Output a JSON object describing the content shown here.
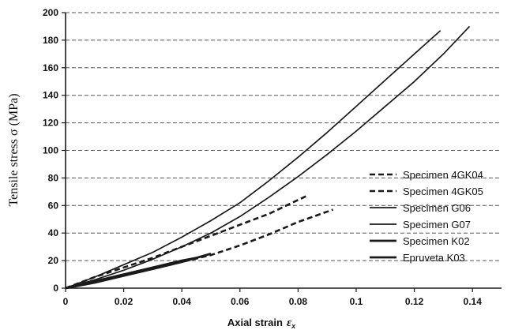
{
  "chart_data": {
    "type": "line",
    "xlabel": "Axial strain",
    "xlabel_symbol": "ε",
    "xlabel_subscript": "x",
    "ylabel": "Tensile  stress σ (MPa)",
    "xlim": [
      0,
      0.15
    ],
    "ylim": [
      0,
      200
    ],
    "xticks": [
      0,
      0.02,
      0.04,
      0.06,
      0.08,
      0.1,
      0.12,
      0.14
    ],
    "xtick_labels": [
      "0",
      "0.02",
      "0.04",
      "0.06",
      "0.08",
      "0.1",
      "0.12",
      "0.14"
    ],
    "yticks": [
      0,
      20,
      40,
      60,
      80,
      100,
      120,
      140,
      160,
      180,
      200
    ],
    "ytick_labels": [
      "0",
      "20",
      "40",
      "60",
      "80",
      "100",
      "120",
      "140",
      "160",
      "180",
      "200"
    ],
    "grid": "horizontal dashed",
    "legend_position": "bottom-right",
    "color": "#1a1a1a",
    "series": [
      {
        "name": "Specimen 4GK04",
        "style": "dashed",
        "x": [
          0,
          0.01,
          0.02,
          0.03,
          0.04,
          0.05,
          0.06,
          0.07,
          0.08,
          0.092
        ],
        "y": [
          0,
          5,
          10,
          14,
          19,
          24,
          31,
          39,
          48,
          57
        ]
      },
      {
        "name": "Specimen 4GK05",
        "style": "dashed",
        "x": [
          0,
          0.01,
          0.02,
          0.03,
          0.04,
          0.05,
          0.06,
          0.07,
          0.083
        ],
        "y": [
          0,
          8,
          15,
          22,
          30,
          38,
          46,
          54,
          67
        ]
      },
      {
        "name": "Specimen G06",
        "style": "solid",
        "x": [
          0,
          0.01,
          0.02,
          0.03,
          0.04,
          0.05,
          0.06,
          0.07,
          0.08,
          0.09,
          0.1,
          0.11,
          0.12,
          0.129
        ],
        "y": [
          0,
          8,
          17,
          26,
          37,
          49,
          62,
          78,
          95,
          113,
          132,
          151,
          170,
          187
        ]
      },
      {
        "name": "Specimen G07",
        "style": "solid",
        "x": [
          0,
          0.01,
          0.02,
          0.03,
          0.04,
          0.05,
          0.06,
          0.07,
          0.08,
          0.09,
          0.1,
          0.11,
          0.12,
          0.13,
          0.139
        ],
        "y": [
          0,
          6,
          13,
          21,
          30,
          40,
          52,
          66,
          81,
          97,
          114,
          132,
          150,
          170,
          190
        ]
      },
      {
        "name": "Specimen K02",
        "style": "solid-thick",
        "x": [
          0,
          0.01,
          0.02,
          0.03,
          0.04,
          0.05
        ],
        "y": [
          0,
          4,
          9,
          14,
          19,
          25
        ]
      },
      {
        "name": "Epruveta K03",
        "style": "solid-thick",
        "x": [
          0,
          0.01,
          0.02,
          0.03,
          0.04,
          0.045
        ],
        "y": [
          0,
          5,
          10,
          15,
          20,
          22
        ]
      }
    ]
  }
}
